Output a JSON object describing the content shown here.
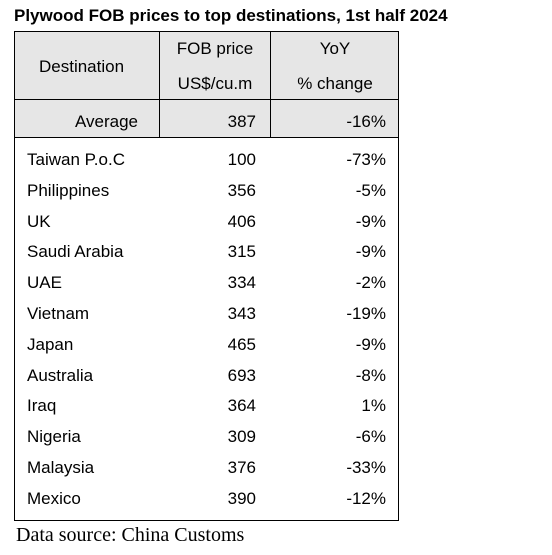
{
  "title": "Plywood FOB prices to top destinations, 1st half 2024",
  "header": {
    "destination": "Destination",
    "price_line1": "FOB price",
    "price_line2": "US$/cu.m",
    "yoy_line1": "YoY",
    "yoy_line2": "% change"
  },
  "average": {
    "label": "Average",
    "price": "387",
    "yoy": "-16%"
  },
  "rows": [
    {
      "destination": "Taiwan P.o.C",
      "price": "100",
      "yoy": "-73%"
    },
    {
      "destination": "Philippines",
      "price": "356",
      "yoy": "-5%"
    },
    {
      "destination": "UK",
      "price": "406",
      "yoy": "-9%"
    },
    {
      "destination": "Saudi Arabia",
      "price": "315",
      "yoy": "-9%"
    },
    {
      "destination": "UAE",
      "price": "334",
      "yoy": "-2%"
    },
    {
      "destination": "Vietnam",
      "price": "343",
      "yoy": "-19%"
    },
    {
      "destination": "Japan",
      "price": "465",
      "yoy": "-9%"
    },
    {
      "destination": "Australia",
      "price": "693",
      "yoy": "-8%"
    },
    {
      "destination": "Iraq",
      "price": "364",
      "yoy": "1%"
    },
    {
      "destination": "Nigeria",
      "price": "309",
      "yoy": "-6%"
    },
    {
      "destination": "Malaysia",
      "price": "376",
      "yoy": "-33%"
    },
    {
      "destination": "Mexico",
      "price": "390",
      "yoy": "-12%"
    }
  ],
  "source": "Data source: China Customs"
}
